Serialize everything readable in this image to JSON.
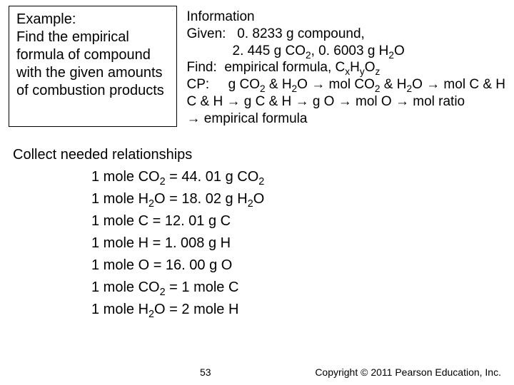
{
  "example": {
    "title": "Example:",
    "body": "Find the empirical formula of compound with the given amounts of combustion products"
  },
  "info": {
    "heading": "Information",
    "given_label": "Given:",
    "given_val1": "0. 8233 g compound,",
    "given_val2a": "2. 445 g CO",
    "given_val2b": ", 0. 6003 g H",
    "given_val2c": "O",
    "find_label": "Find:",
    "find_val_a": "empirical formula, C",
    "find_val_b": "H",
    "find_val_c": "O",
    "cp_label": "CP:",
    "cp_a": "g CO",
    "cp_b": " & H",
    "cp_c": "O ",
    "cp_d": " mol CO",
    "cp_e": " & H",
    "cp_f": "O ",
    "cp_g": " mol C & H ",
    "cp_h": " g C & H ",
    "cp_i": " g O ",
    "cp_j": " mol O ",
    "cp_k": " mol ratio ",
    "cp_l": " empirical formula"
  },
  "rel": {
    "heading": "Collect needed relationships",
    "l1a": "1 mole CO",
    "l1b": " = 44. 01 g CO",
    "l2a": "1 mole H",
    "l2b": "O = 18. 02 g H",
    "l2c": "O",
    "l3": "1 mole C = 12. 01 g C",
    "l4": "1 mole H = 1. 008 g H",
    "l5": "1 mole O = 16. 00 g O",
    "l6a": "1 mole CO",
    "l6b": " = 1 mole C",
    "l7a": "1 mole H",
    "l7b": "O = 2 mole H"
  },
  "footer": {
    "page": "53",
    "copy_a": "Copyright ",
    "copy_b": " 2011 Pearson Education, Inc."
  },
  "glyph": {
    "arrow": "→",
    "copyright": "©"
  },
  "sub": {
    "two": "2",
    "x": "x",
    "y": "y",
    "z": "z"
  }
}
